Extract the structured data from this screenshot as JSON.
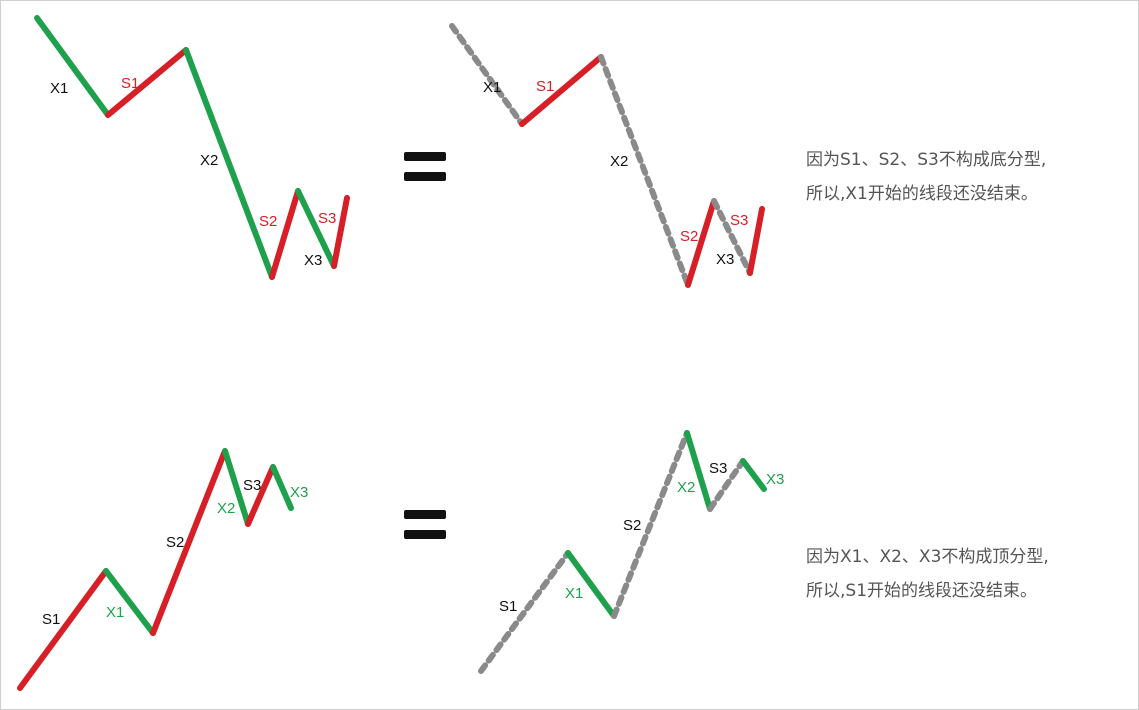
{
  "colors": {
    "red": "#d61f26",
    "green": "#1fa04c",
    "gray": "#8a8a8a",
    "black": "#111111",
    "text": "#555555"
  },
  "panels": {
    "top_left": {
      "labels": {
        "x1": "X1",
        "s1": "S1",
        "x2": "X2",
        "s2": "S2",
        "s3": "S3",
        "x3": "X3"
      }
    },
    "top_right": {
      "labels": {
        "x1": "X1",
        "s1": "S1",
        "x2": "X2",
        "s2": "S2",
        "s3": "S3",
        "x3": "X3"
      }
    },
    "bottom_left": {
      "labels": {
        "s1": "S1",
        "x1": "X1",
        "s2": "S2",
        "x2": "X2",
        "s3": "S3",
        "x3": "X3"
      }
    },
    "bottom_right": {
      "labels": {
        "s1": "S1",
        "x1": "X1",
        "s2": "S2",
        "x2": "X2",
        "s3": "S3",
        "x3": "X3"
      }
    }
  },
  "notes": {
    "top": {
      "line1": "因为S1、S2、S3不构成底分型,",
      "line2": "所以,X1开始的线段还没结束。"
    },
    "bottom": {
      "line1": "因为X1、X2、X3不构成顶分型,",
      "line2": "所以,S1开始的线段还没结束。"
    }
  }
}
